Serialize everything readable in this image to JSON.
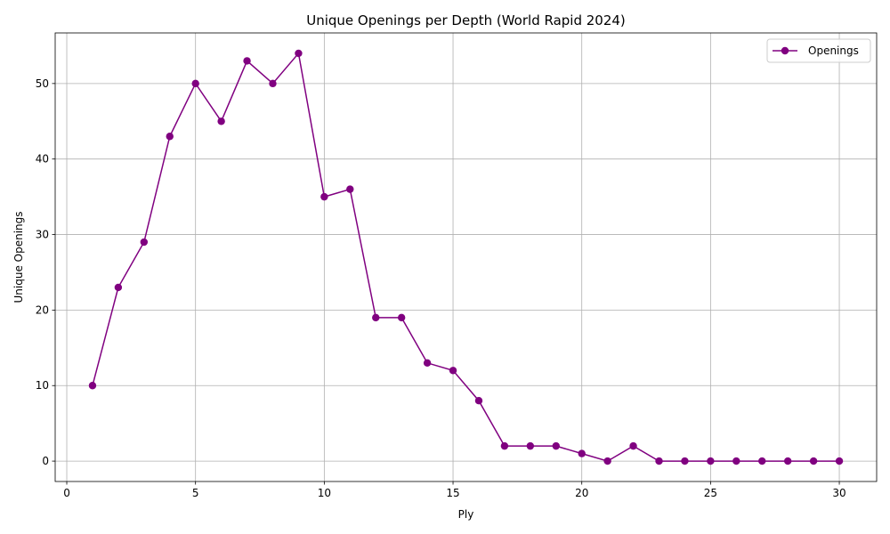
{
  "chart_data": {
    "type": "line",
    "title": "Unique Openings per Depth (World Rapid 2024)",
    "xlabel": "Ply",
    "ylabel": "Unique Openings",
    "xlim": [
      -0.45,
      31.45
    ],
    "ylim": [
      -2.7,
      56.7
    ],
    "xticks": [
      0,
      5,
      10,
      15,
      20,
      25,
      30
    ],
    "yticks": [
      0,
      10,
      20,
      30,
      40,
      50
    ],
    "grid": true,
    "legend_position": "top-right",
    "x": [
      1,
      2,
      3,
      4,
      5,
      6,
      7,
      8,
      9,
      10,
      11,
      12,
      13,
      14,
      15,
      16,
      17,
      18,
      19,
      20,
      21,
      22,
      23,
      24,
      25,
      26,
      27,
      28,
      29,
      30
    ],
    "series": [
      {
        "name": "Openings",
        "color": "#800080",
        "marker": "circle",
        "values": [
          10,
          23,
          29,
          43,
          50,
          45,
          53,
          50,
          54,
          35,
          36,
          19,
          19,
          13,
          12,
          8,
          2,
          2,
          2,
          1,
          0,
          2,
          0,
          0,
          0,
          0,
          0,
          0,
          0,
          0
        ]
      }
    ]
  }
}
